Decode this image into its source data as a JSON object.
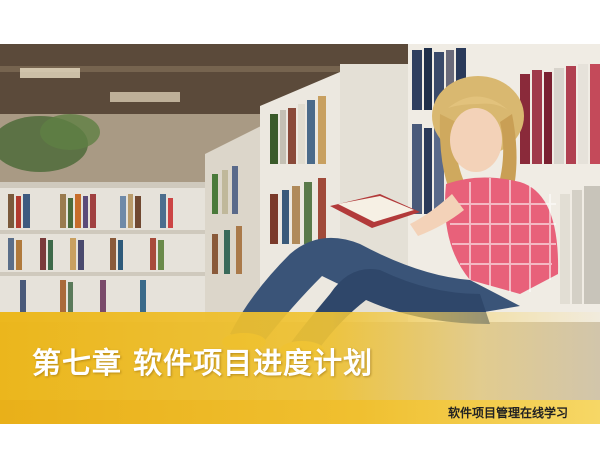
{
  "slide": {
    "title": "第七章 软件项目进度计划",
    "footer": "软件项目管理在线学习"
  },
  "colors": {
    "band_yellow": "#ecb618",
    "title_text": "#ffffff",
    "footer_text": "#222222"
  },
  "images": {
    "background": "library-photo-girl-reading"
  }
}
